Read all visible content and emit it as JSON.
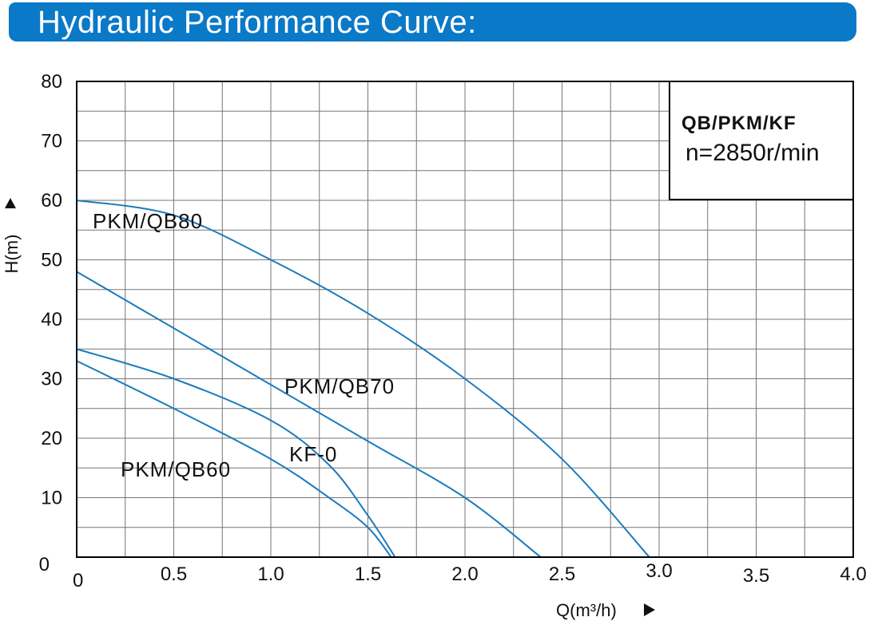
{
  "header": {
    "title": "Hydraulic Performance Curve:"
  },
  "chart_data": {
    "type": "line",
    "xlabel": "Q(m³/h)",
    "ylabel": "H(m)",
    "xlim": [
      0,
      4.0
    ],
    "ylim": [
      0,
      80
    ],
    "x_ticks": [
      "0",
      "0.5",
      "1.0",
      "1.5",
      "2.0",
      "2.5",
      "3.0",
      "3.5",
      "4.0"
    ],
    "y_ticks": [
      "0",
      "10",
      "20",
      "30",
      "40",
      "50",
      "60",
      "70",
      "80"
    ],
    "grid": true,
    "info_box": {
      "line1": "QB/PKM/KF",
      "line2": "n=2850r/min"
    },
    "series": [
      {
        "name": "PKM/QB80",
        "points": [
          [
            0,
            60
          ],
          [
            0.5,
            57.5
          ],
          [
            1.0,
            50
          ],
          [
            1.5,
            41
          ],
          [
            2.0,
            30
          ],
          [
            2.5,
            16.5
          ],
          [
            2.95,
            0
          ]
        ]
      },
      {
        "name": "PKM/QB70",
        "points": [
          [
            0,
            48
          ],
          [
            0.5,
            38.5
          ],
          [
            1.0,
            29
          ],
          [
            1.5,
            19.5
          ],
          [
            2.0,
            10
          ],
          [
            2.39,
            0
          ]
        ]
      },
      {
        "name": "KF-0",
        "points": [
          [
            0,
            35
          ],
          [
            0.5,
            30
          ],
          [
            1.0,
            23
          ],
          [
            1.3,
            15.5
          ],
          [
            1.5,
            7
          ],
          [
            1.64,
            0
          ]
        ]
      },
      {
        "name": "PKM/QB60",
        "points": [
          [
            0,
            33
          ],
          [
            0.5,
            25
          ],
          [
            1.0,
            16.5
          ],
          [
            1.3,
            10
          ],
          [
            1.5,
            5
          ],
          [
            1.62,
            0
          ]
        ]
      }
    ],
    "colors": {
      "curve": "#1b7bbd",
      "grid": "#777777",
      "axis": "#000000",
      "header": "#0a79c8"
    }
  }
}
